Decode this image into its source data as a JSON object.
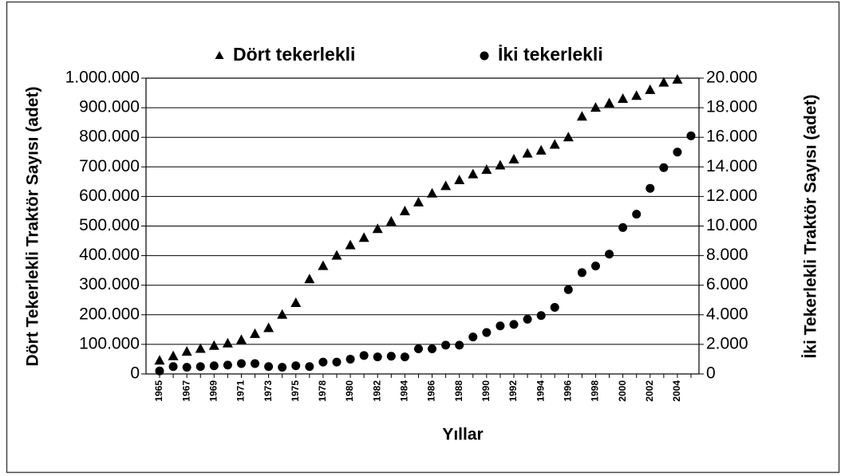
{
  "chart_data": {
    "type": "scatter",
    "x_label": "Yıllar",
    "y_label": "Dört Tekerlekli Traktör Sayısı  (adet)",
    "y2_label": "İki Tekerlekli Traktör Sayısı (adet)",
    "categories": [
      "1965",
      null,
      "1967",
      null,
      "1969",
      null,
      "1971",
      null,
      "1973",
      null,
      "1975",
      null,
      "1978",
      null,
      "1980",
      null,
      "1982",
      null,
      "1984",
      null,
      "1986",
      null,
      "1988",
      null,
      "1990",
      null,
      "1992",
      null,
      "1994",
      null,
      "1996",
      null,
      "1998",
      null,
      "2000",
      null,
      "2002",
      null,
      "2004",
      null
    ],
    "series": [
      {
        "name": "Dört tekerlekli",
        "color": "#000000",
        "marker": "triangle",
        "values": [
          45000,
          60000,
          75000,
          85000,
          95000,
          103000,
          115000,
          135000,
          155000,
          200000,
          240000,
          320000,
          365000,
          400000,
          435000,
          460000,
          490000,
          515000,
          550000,
          580000,
          610000,
          635000,
          655000,
          675000,
          690000,
          705000,
          725000,
          745000,
          755000,
          775000,
          800000,
          870000,
          900000,
          915000,
          930000,
          940000,
          960000,
          985000,
          995000,
          null
        ]
      },
      {
        "name": "İki tekerlekli",
        "color": "#000000",
        "marker": "circle",
        "axis": "y2",
        "values": [
          200,
          500,
          450,
          500,
          550,
          600,
          700,
          700,
          500,
          450,
          550,
          500,
          800,
          800,
          1000,
          1250,
          1150,
          1200,
          1150,
          1700,
          1700,
          1950,
          1950,
          2500,
          2800,
          3250,
          3350,
          3700,
          3950,
          4500,
          5700,
          6850,
          7300,
          8100,
          9900,
          10800,
          12550,
          13950,
          15000,
          16100
        ]
      }
    ],
    "ylim": [
      0,
      1000000
    ],
    "yticks": [
      0,
      {
        "value": 100000,
        "label": "100.000"
      },
      {
        "value": 200000,
        "label": "200.000"
      },
      {
        "value": 300000,
        "label": "300.000"
      },
      {
        "value": 400000,
        "label": "400.000"
      },
      {
        "value": 500000,
        "label": "500.000"
      },
      {
        "value": 600000,
        "label": "600.000"
      },
      {
        "value": 700000,
        "label": "700.000"
      },
      {
        "value": 800000,
        "label": "800.000"
      },
      {
        "value": 900000,
        "label": "900.000"
      },
      {
        "value": 1000000,
        "label": "1.000.000"
      }
    ],
    "y2lim": [
      0,
      20000
    ],
    "y2ticks": [
      0,
      {
        "value": 2000,
        "label": "2.000"
      },
      {
        "value": 4000,
        "label": "4.000"
      },
      {
        "value": 6000,
        "label": "6.000"
      },
      {
        "value": 8000,
        "label": "8.000"
      },
      {
        "value": 10000,
        "label": "10.000"
      },
      {
        "value": 12000,
        "label": "12.000"
      },
      {
        "value": 14000,
        "label": "14.000"
      },
      {
        "value": 16000,
        "label": "16.000"
      },
      {
        "value": 18000,
        "label": "18.000"
      },
      {
        "value": 20000,
        "label": "20.000"
      }
    ],
    "grid": true,
    "legend": "top"
  }
}
